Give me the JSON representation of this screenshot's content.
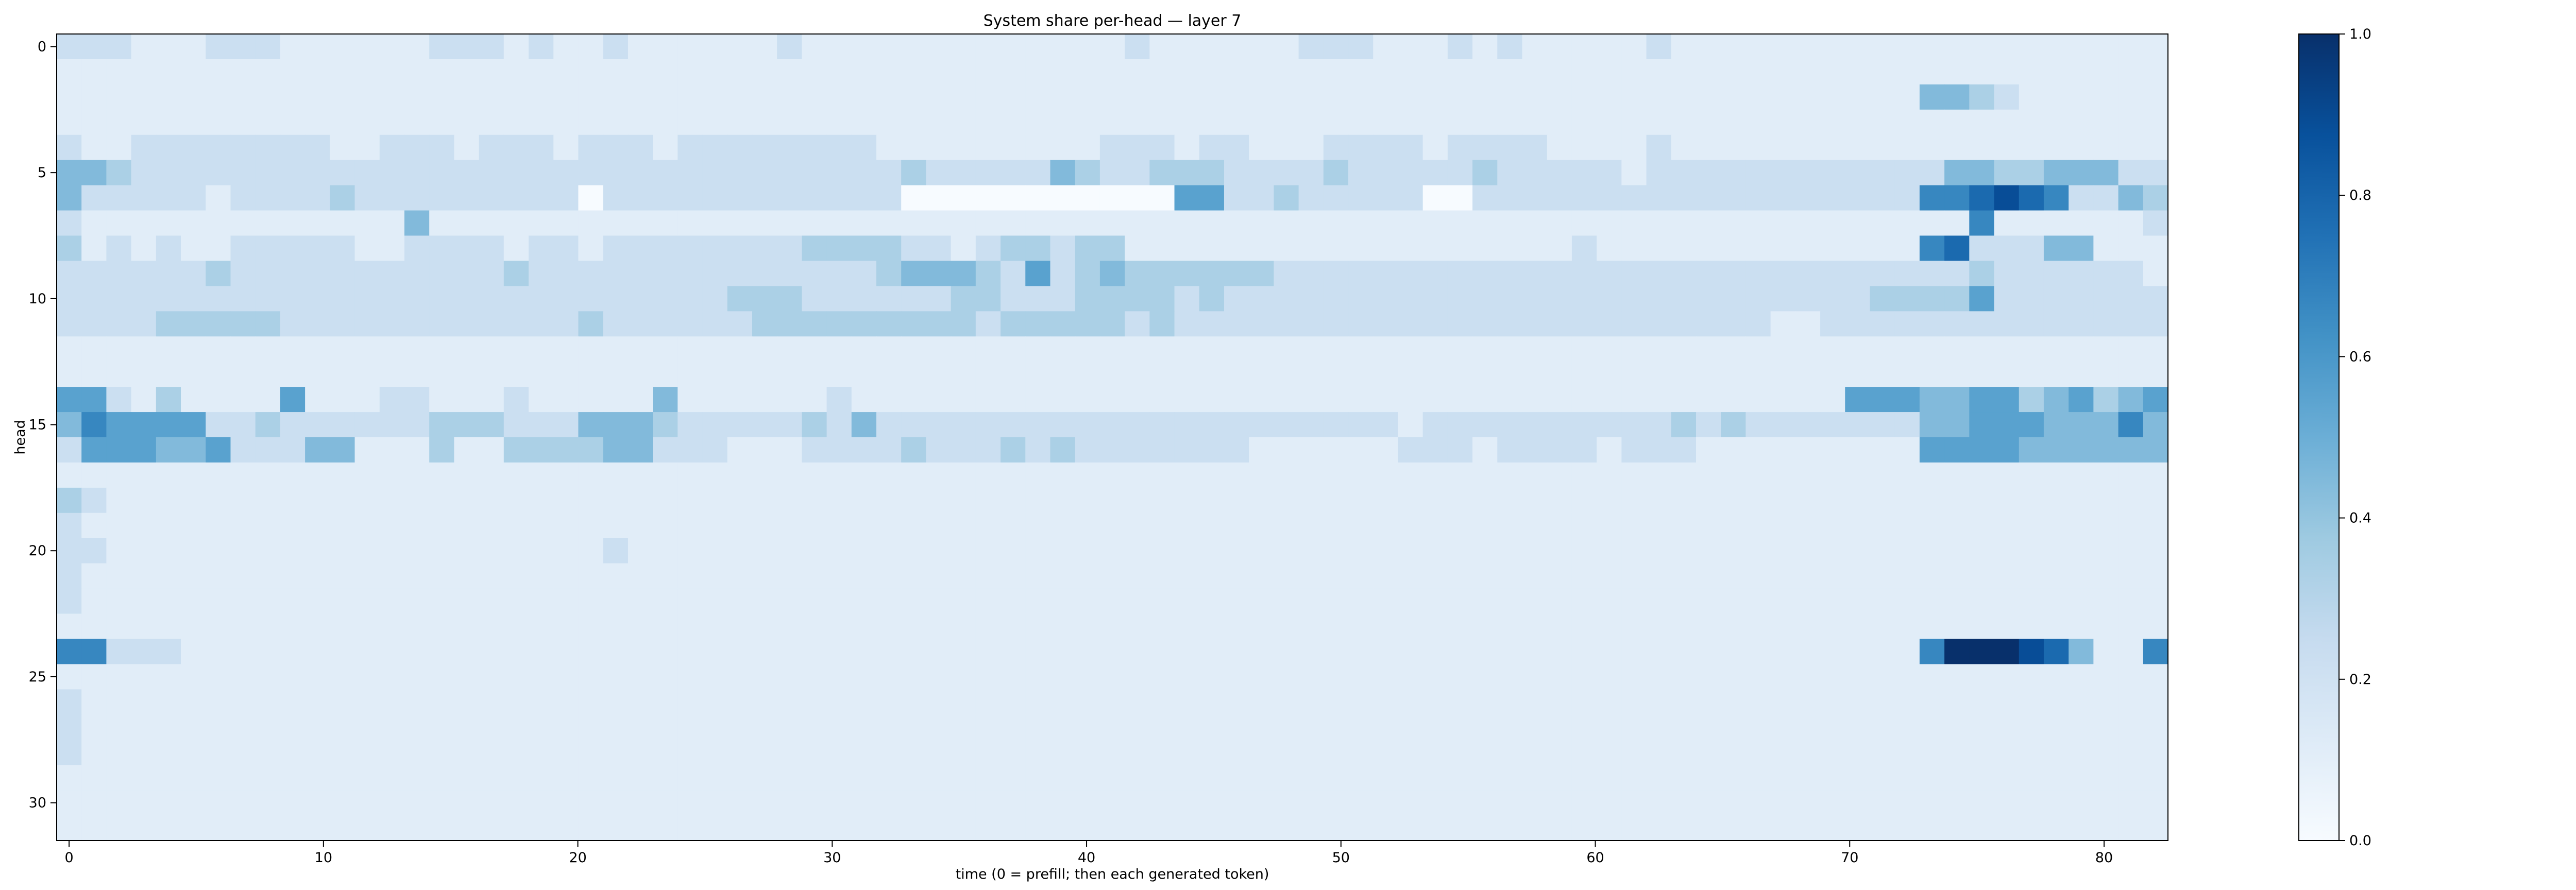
{
  "chart_data": {
    "type": "heatmap",
    "title": "System share per-head — layer 7",
    "xlabel": "time (0 = prefill; then each generated token)",
    "ylabel": "head",
    "x_ticks": [
      0,
      10,
      20,
      30,
      40,
      50,
      60,
      70,
      80
    ],
    "y_ticks": [
      0,
      5,
      10,
      15,
      20,
      25,
      30
    ],
    "x_range": [
      0,
      82
    ],
    "y_range": [
      0,
      31
    ],
    "colorbar": {
      "range": [
        0,
        1
      ],
      "ticks": [
        "0.0",
        "0.2",
        "0.4",
        "0.6",
        "0.8",
        "1.0"
      ]
    },
    "colormap": {
      "low": "#f7fbff",
      "high": "#08306b"
    },
    "rows": [
      "2221112221111112221211211111121111111111111211111122211121211111211111111111111111111",
      "1111111111111111111111111111111111111111111111111111111111111111111111111111111111111",
      "1111111111111111111111111111111111111111111111111111111111111111111111111114432111111",
      "1111111111111111111111111111111111111111111111111111111111111111111111111111111111111",
      "2112222222211222122212221222222221111111112221221112222122221111211111111111111111111",
      "4432222222222222222222222222222222322222432233322223222223222221222222222222443344422",
      "4222221222232222222220222222222222000000000005522322222002222222222222222226678762243",
      "2111111111111141111111111111111111111111111111111111111111111111111111111111161111112",
      "3121211222221122221221222222223333221233233111111111111111111211111111111116722244111",
      "2222223222222222223222222222222223444325234333333222222222222222222222222222232222221",
      "2222222222222222222222222223332222223322233332322222222222222222222222222333352222222",
      "2222333332222222222223222222333333333233333232222222222222222222222221122222222222222",
      "1111111111111111111111111111111111111111111111111111111111111111111111111111111111111",
      "1111111111111111111111111111111111111111111111111111111111111111111111111111111111111",
      "5521311115111221112111114111111211111111111111111111111111111111111111115554455345345",
      "4655552232222223332224443222223242222222222222222222221222222222232322222224455544464",
      "2555445222441113113333442221112222322232322222221111112221222212221111111115555444444",
      "1111111111111111111111111111111111111111111111111111111111111111111111111111111111111",
      "3211111111111111111111111111111111111111111111111111111111111111111111111111111111111",
      "2111111111111111111111111111111111111111111111111111111111111111111111111111111111111",
      "2211111111111111111111211111111111111111111111111111111111111111111111111111111111111",
      "2111111111111111111111111111111111111111111111111111111111111111111111111111111111111",
      "2111111111111111111111111111111111111111111111111111111111111111111111111111111111111",
      "1111111111111111111111111111111111111111111111111111111111111111111111111111111111111",
      "6622211111111111111111111111111111111111111111111111111111111111111111111116999874116",
      "1111111111111111111111111111111111111111111111111111111111111111111111111111111111111",
      "2111111111111111111111111111111111111111111111111111111111111111111111111111111111111",
      "2111111111111111111111111111111111111111111111111111111111111111111111111111111111111",
      "2111111111111111111111111111111111111111111111111111111111111111111111111111111111111",
      "1111111111111111111111111111111111111111111111111111111111111111111111111111111111111",
      "1111111111111111111111111111111111111111111111111111111111111111111111111111111111111",
      "1111111111111111111111111111111111111111111111111111111111111111111111111111111111111"
    ]
  }
}
